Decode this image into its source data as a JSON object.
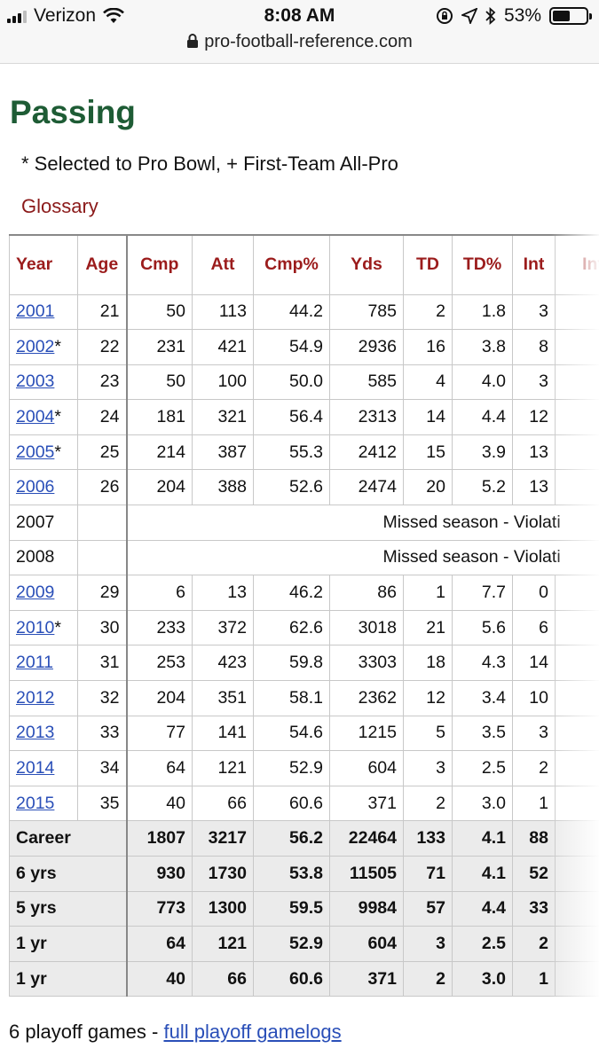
{
  "status_bar": {
    "carrier": "Verizon",
    "time": "8:08 AM",
    "battery": "53%",
    "battery_level": 0.53
  },
  "browser": {
    "url": "pro-football-reference.com"
  },
  "section_title": "Passing",
  "legend_text": "* Selected to Pro Bowl, + First-Team All-Pro",
  "glossary_link": "Glossary",
  "table": {
    "headers": [
      "Year",
      "Age",
      "Cmp",
      "Att",
      "Cmp%",
      "Yds",
      "TD",
      "TD%",
      "Int",
      "Int"
    ],
    "rows": [
      {
        "year": "2001",
        "mark": "",
        "age": "21",
        "cmp": "50",
        "att": "113",
        "cmp_pct": "44.2",
        "yds": "785",
        "td": "2",
        "td_pct": "1.8",
        "int": "3"
      },
      {
        "year": "2002",
        "mark": "*",
        "age": "22",
        "cmp": "231",
        "att": "421",
        "cmp_pct": "54.9",
        "yds": "2936",
        "td": "16",
        "td_pct": "3.8",
        "int": "8"
      },
      {
        "year": "2003",
        "mark": "",
        "age": "23",
        "cmp": "50",
        "att": "100",
        "cmp_pct": "50.0",
        "yds": "585",
        "td": "4",
        "td_pct": "4.0",
        "int": "3"
      },
      {
        "year": "2004",
        "mark": "*",
        "age": "24",
        "cmp": "181",
        "att": "321",
        "cmp_pct": "56.4",
        "yds": "2313",
        "td": "14",
        "td_pct": "4.4",
        "int": "12"
      },
      {
        "year": "2005",
        "mark": "*",
        "age": "25",
        "cmp": "214",
        "att": "387",
        "cmp_pct": "55.3",
        "yds": "2412",
        "td": "15",
        "td_pct": "3.9",
        "int": "13"
      },
      {
        "year": "2006",
        "mark": "",
        "age": "26",
        "cmp": "204",
        "att": "388",
        "cmp_pct": "52.6",
        "yds": "2474",
        "td": "20",
        "td_pct": "5.2",
        "int": "13"
      },
      {
        "year": "2007",
        "missed": "Missed season - Violati"
      },
      {
        "year": "2008",
        "missed": "Missed season - Violati"
      },
      {
        "year": "2009",
        "mark": "",
        "age": "29",
        "cmp": "6",
        "att": "13",
        "cmp_pct": "46.2",
        "yds": "86",
        "td": "1",
        "td_pct": "7.7",
        "int": "0"
      },
      {
        "year": "2010",
        "mark": "*",
        "age": "30",
        "cmp": "233",
        "att": "372",
        "cmp_pct": "62.6",
        "yds": "3018",
        "td": "21",
        "td_pct": "5.6",
        "int": "6"
      },
      {
        "year": "2011",
        "mark": "",
        "age": "31",
        "cmp": "253",
        "att": "423",
        "cmp_pct": "59.8",
        "yds": "3303",
        "td": "18",
        "td_pct": "4.3",
        "int": "14"
      },
      {
        "year": "2012",
        "mark": "",
        "age": "32",
        "cmp": "204",
        "att": "351",
        "cmp_pct": "58.1",
        "yds": "2362",
        "td": "12",
        "td_pct": "3.4",
        "int": "10"
      },
      {
        "year": "2013",
        "mark": "",
        "age": "33",
        "cmp": "77",
        "att": "141",
        "cmp_pct": "54.6",
        "yds": "1215",
        "td": "5",
        "td_pct": "3.5",
        "int": "3"
      },
      {
        "year": "2014",
        "mark": "",
        "age": "34",
        "cmp": "64",
        "att": "121",
        "cmp_pct": "52.9",
        "yds": "604",
        "td": "3",
        "td_pct": "2.5",
        "int": "2"
      },
      {
        "year": "2015",
        "mark": "",
        "age": "35",
        "cmp": "40",
        "att": "66",
        "cmp_pct": "60.6",
        "yds": "371",
        "td": "2",
        "td_pct": "3.0",
        "int": "1"
      }
    ],
    "summary": [
      {
        "label": "Career",
        "cmp": "1807",
        "att": "3217",
        "cmp_pct": "56.2",
        "yds": "22464",
        "td": "133",
        "td_pct": "4.1",
        "int": "88"
      },
      {
        "label": "6 yrs",
        "cmp": "930",
        "att": "1730",
        "cmp_pct": "53.8",
        "yds": "11505",
        "td": "71",
        "td_pct": "4.1",
        "int": "52"
      },
      {
        "label": "5 yrs",
        "cmp": "773",
        "att": "1300",
        "cmp_pct": "59.5",
        "yds": "9984",
        "td": "57",
        "td_pct": "4.4",
        "int": "33"
      },
      {
        "label": "1 yr",
        "cmp": "64",
        "att": "121",
        "cmp_pct": "52.9",
        "yds": "604",
        "td": "3",
        "td_pct": "2.5",
        "int": "2"
      },
      {
        "label": "1 yr",
        "cmp": "40",
        "att": "66",
        "cmp_pct": "60.6",
        "yds": "371",
        "td": "2",
        "td_pct": "3.0",
        "int": "1"
      }
    ]
  },
  "footer": {
    "text": "6 playoff games - ",
    "link": "full playoff gamelogs"
  },
  "colors": {
    "section_title": "#1e5c35",
    "header_text": "#9b1c1c",
    "link": "#2a4fb8",
    "summary_bg": "#ebebeb"
  },
  "icons": [
    "signal-icon",
    "wifi-icon",
    "lock-icon",
    "rotation-lock-icon",
    "location-icon",
    "bluetooth-icon",
    "battery-icon"
  ]
}
